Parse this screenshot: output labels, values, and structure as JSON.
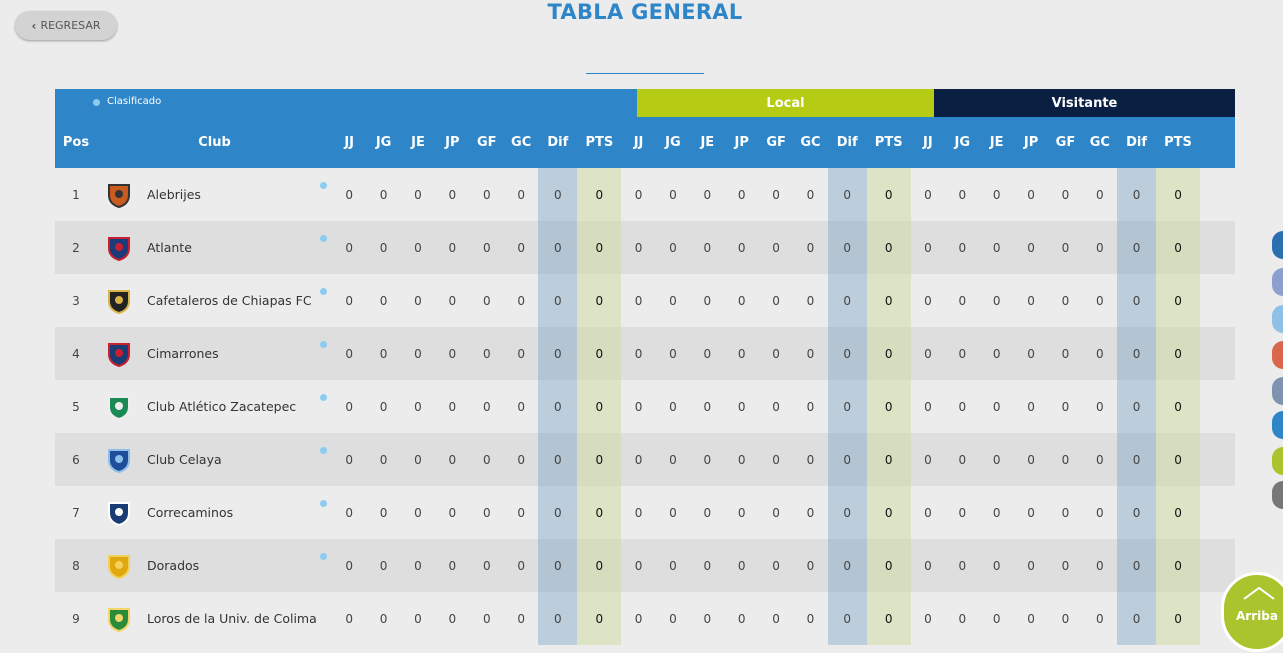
{
  "nav": {
    "back_label": "REGRESAR"
  },
  "page": {
    "title": "TABLA GENERAL"
  },
  "legend": {
    "clasificado": "Clasificado"
  },
  "groups": {
    "local": "Local",
    "visitante": "Visitante"
  },
  "headers": {
    "pos": "Pos",
    "club": "Club",
    "general": [
      "JJ",
      "JG",
      "JE",
      "JP",
      "GF",
      "GC",
      "Dif",
      "PTS"
    ],
    "local": [
      "JJ",
      "JG",
      "JE",
      "JP",
      "GF",
      "GC",
      "Dif",
      "PTS"
    ],
    "visitante": [
      "JJ",
      "JG",
      "JE",
      "JP",
      "GF",
      "GC",
      "Dif",
      "PTS"
    ]
  },
  "rows": [
    {
      "pos": "1",
      "club": "Alebrijes",
      "logo": "alebrijes-logo",
      "general": [
        "0",
        "0",
        "0",
        "0",
        "0",
        "0",
        "0",
        "0"
      ],
      "local": [
        "0",
        "0",
        "0",
        "0",
        "0",
        "0",
        "0",
        "0"
      ],
      "visitante": [
        "0",
        "0",
        "0",
        "0",
        "0",
        "0",
        "0",
        "0"
      ]
    },
    {
      "pos": "2",
      "club": "Atlante",
      "logo": "atlante-logo",
      "general": [
        "0",
        "0",
        "0",
        "0",
        "0",
        "0",
        "0",
        "0"
      ],
      "local": [
        "0",
        "0",
        "0",
        "0",
        "0",
        "0",
        "0",
        "0"
      ],
      "visitante": [
        "0",
        "0",
        "0",
        "0",
        "0",
        "0",
        "0",
        "0"
      ]
    },
    {
      "pos": "3",
      "club": "Cafetaleros de Chiapas FC",
      "logo": "cafetaleros-logo",
      "general": [
        "0",
        "0",
        "0",
        "0",
        "0",
        "0",
        "0",
        "0"
      ],
      "local": [
        "0",
        "0",
        "0",
        "0",
        "0",
        "0",
        "0",
        "0"
      ],
      "visitante": [
        "0",
        "0",
        "0",
        "0",
        "0",
        "0",
        "0",
        "0"
      ]
    },
    {
      "pos": "4",
      "club": "Cimarrones",
      "logo": "cimarrones-logo",
      "general": [
        "0",
        "0",
        "0",
        "0",
        "0",
        "0",
        "0",
        "0"
      ],
      "local": [
        "0",
        "0",
        "0",
        "0",
        "0",
        "0",
        "0",
        "0"
      ],
      "visitante": [
        "0",
        "0",
        "0",
        "0",
        "0",
        "0",
        "0",
        "0"
      ]
    },
    {
      "pos": "5",
      "club": "Club Atlético Zacatepec",
      "logo": "zacatepec-logo",
      "general": [
        "0",
        "0",
        "0",
        "0",
        "0",
        "0",
        "0",
        "0"
      ],
      "local": [
        "0",
        "0",
        "0",
        "0",
        "0",
        "0",
        "0",
        "0"
      ],
      "visitante": [
        "0",
        "0",
        "0",
        "0",
        "0",
        "0",
        "0",
        "0"
      ]
    },
    {
      "pos": "6",
      "club": "Club Celaya",
      "logo": "celaya-logo",
      "general": [
        "0",
        "0",
        "0",
        "0",
        "0",
        "0",
        "0",
        "0"
      ],
      "local": [
        "0",
        "0",
        "0",
        "0",
        "0",
        "0",
        "0",
        "0"
      ],
      "visitante": [
        "0",
        "0",
        "0",
        "0",
        "0",
        "0",
        "0",
        "0"
      ]
    },
    {
      "pos": "7",
      "club": "Correcaminos",
      "logo": "correcaminos-logo",
      "general": [
        "0",
        "0",
        "0",
        "0",
        "0",
        "0",
        "0",
        "0"
      ],
      "local": [
        "0",
        "0",
        "0",
        "0",
        "0",
        "0",
        "0",
        "0"
      ],
      "visitante": [
        "0",
        "0",
        "0",
        "0",
        "0",
        "0",
        "0",
        "0"
      ]
    },
    {
      "pos": "8",
      "club": "Dorados",
      "logo": "dorados-logo",
      "general": [
        "0",
        "0",
        "0",
        "0",
        "0",
        "0",
        "0",
        "0"
      ],
      "local": [
        "0",
        "0",
        "0",
        "0",
        "0",
        "0",
        "0",
        "0"
      ],
      "visitante": [
        "0",
        "0",
        "0",
        "0",
        "0",
        "0",
        "0",
        "0"
      ]
    },
    {
      "pos": "9",
      "club": "Loros de la Univ. de Colima",
      "logo": "loros-logo",
      "general": [
        "0",
        "0",
        "0",
        "0",
        "0",
        "0",
        "0",
        "0"
      ],
      "local": [
        "0",
        "0",
        "0",
        "0",
        "0",
        "0",
        "0",
        "0"
      ],
      "visitante": [
        "0",
        "0",
        "0",
        "0",
        "0",
        "0",
        "0",
        "0"
      ]
    }
  ],
  "clasificado_rows": 8,
  "scroll_top": {
    "label": "Arriba"
  },
  "colors": {
    "primary": "#2e86c9",
    "local": "#b5cb14",
    "visitante": "#0b1f42",
    "arriba": "#a9c42c"
  }
}
